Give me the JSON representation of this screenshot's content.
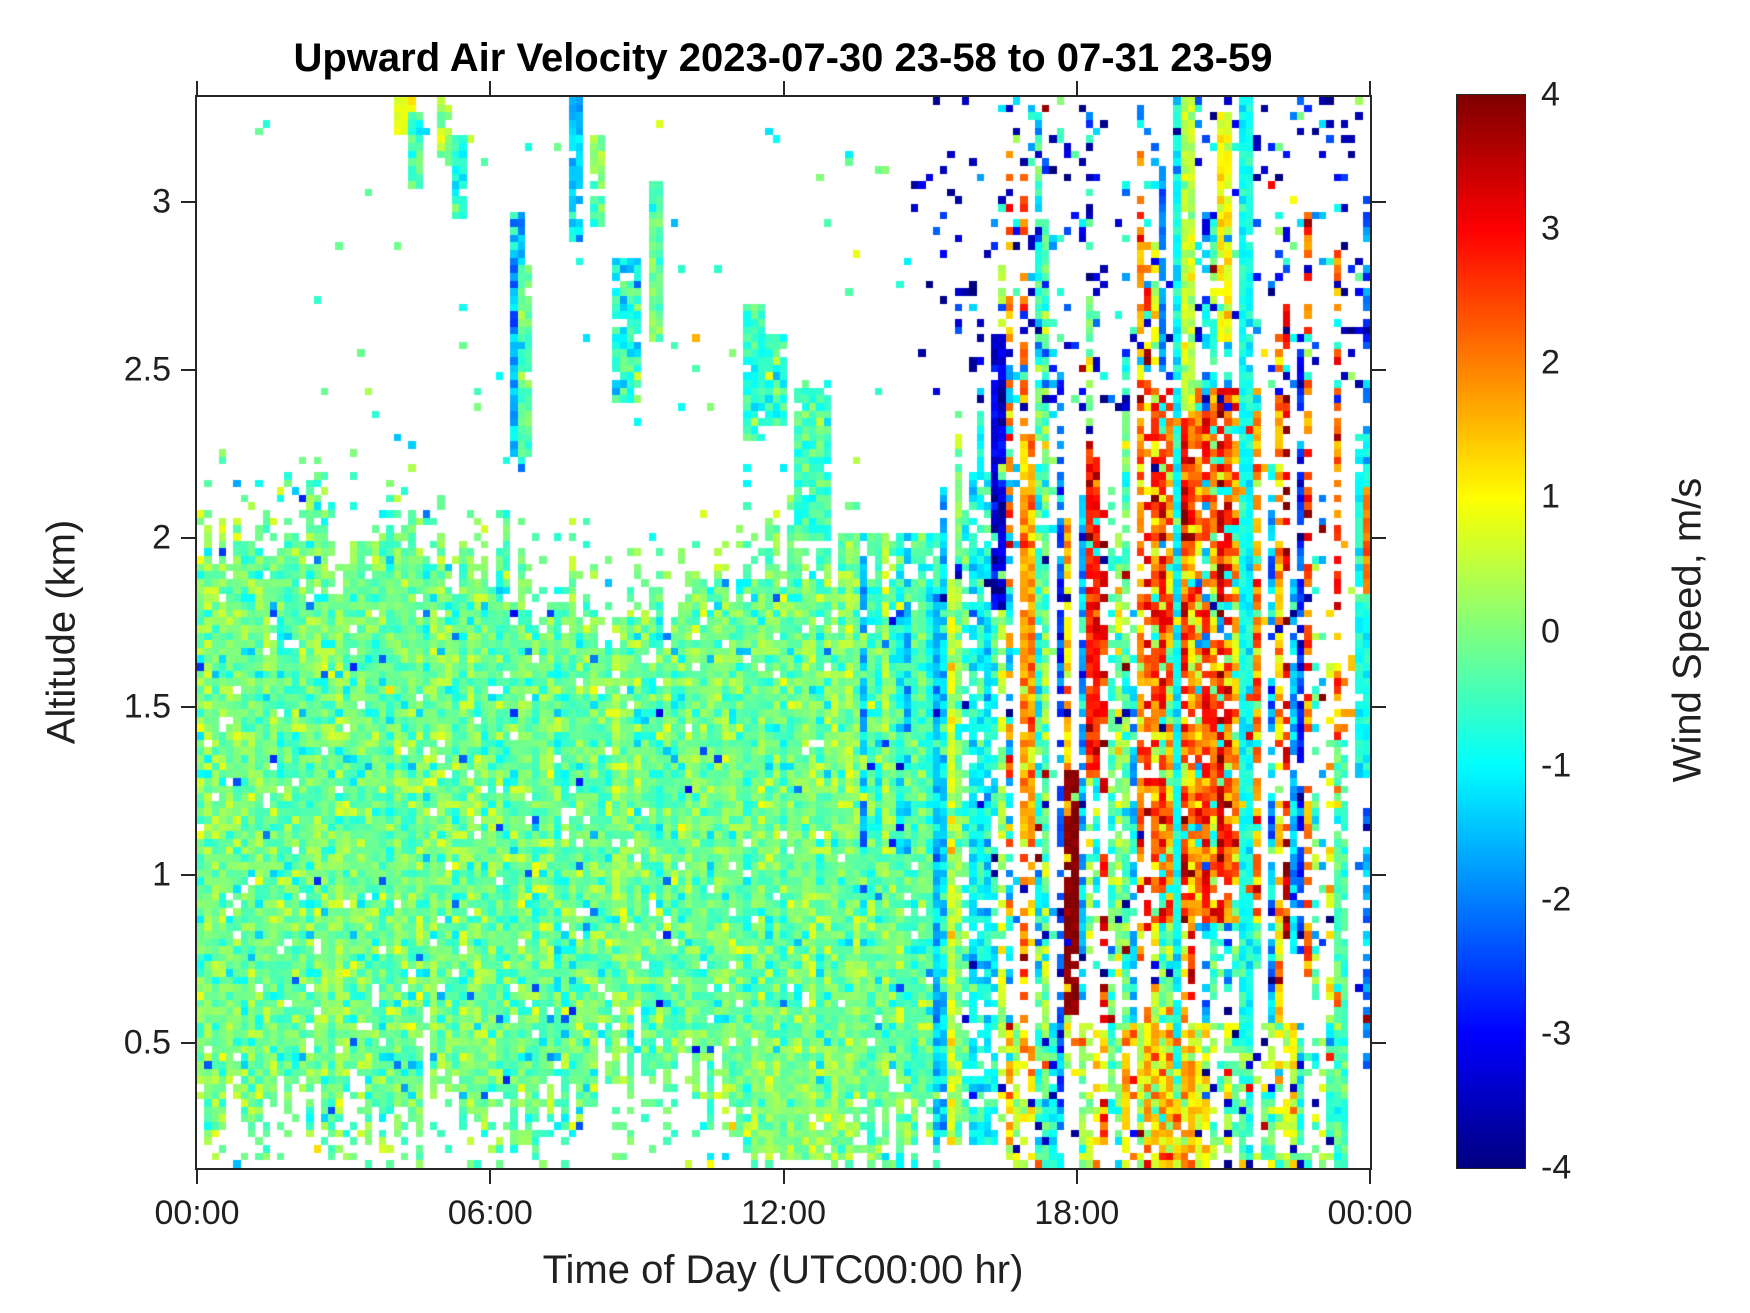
{
  "figure": {
    "background": "#ffffff",
    "text_color": "#202020",
    "frame_color": "#262626"
  },
  "chart_data": {
    "type": "heatmap",
    "title": "Upward Air Velocity 2023-07-30 23-58 to 07-31 23-59",
    "xlabel": "Time of Day (UTC00:00 hr)",
    "ylabel": "Altitude (km)",
    "x_unit": "hours_utc",
    "xlim": [
      0,
      24
    ],
    "ylim": [
      0.128,
      3.312
    ],
    "grid_lines": "off",
    "xticks": [
      {
        "value": 0,
        "label": "00:00"
      },
      {
        "value": 6,
        "label": "06:00"
      },
      {
        "value": 12,
        "label": "12:00"
      },
      {
        "value": 18,
        "label": "18:00"
      },
      {
        "value": 24,
        "label": "00:00"
      }
    ],
    "yticks": [
      {
        "value": 0.5,
        "label": "0.5"
      },
      {
        "value": 1,
        "label": "1"
      },
      {
        "value": 1.5,
        "label": "1.5"
      },
      {
        "value": 2,
        "label": "2"
      },
      {
        "value": 2.5,
        "label": "2.5"
      },
      {
        "value": 3,
        "label": "3"
      }
    ],
    "colorbar": {
      "label": "Wind Speed, m/s",
      "min": -4,
      "max": 4,
      "ticks": [
        4,
        3,
        2,
        1,
        0,
        -1,
        -2,
        -3,
        -4
      ],
      "colormap": "jet"
    },
    "grid": {
      "cols": 161,
      "rows": 140,
      "seed": 20230731
    },
    "field_model": {
      "regions": [
        {
          "name": "boundary-layer-core",
          "t": [
            0,
            15.4
          ],
          "top_profile": [
            [
              0,
              2.0
            ],
            [
              4,
              1.96
            ],
            [
              6,
              1.92
            ],
            [
              7,
              1.8
            ],
            [
              8.5,
              1.74
            ],
            [
              10,
              1.84
            ],
            [
              11,
              1.9
            ],
            [
              12,
              1.97
            ],
            [
              13,
              1.95
            ],
            [
              14,
              1.86
            ],
            [
              15.4,
              1.8
            ]
          ],
          "bottom_profile": [
            [
              0,
              0.3
            ],
            [
              3,
              0.34
            ],
            [
              6,
              0.3
            ],
            [
              8,
              0.4
            ],
            [
              10,
              0.44
            ],
            [
              11.3,
              0.28
            ],
            [
              13,
              0.2
            ],
            [
              14,
              0.32
            ],
            [
              15.4,
              0.38
            ]
          ],
          "top_jitter": 0.07,
          "bottom_jitter": 0.09,
          "halo_top": {
            "dist": 0.28,
            "density": 0.3
          },
          "halo_bottom": {
            "dist": 0.22,
            "density": 0.35
          },
          "density": 0.97,
          "mean": -0.18,
          "sd": 0.3,
          "col_jitter": 0.13,
          "outliers": [
            {
              "p": 0.05,
              "v": -1.1,
              "sd": 0.25
            },
            {
              "p": 0.1,
              "v": 0.5,
              "sd": 0.2
            },
            {
              "p": 0.012,
              "v": -2.3,
              "sd": 0.4
            }
          ]
        },
        {
          "name": "surface-sparse",
          "t": [
            0,
            15.4
          ],
          "alt": [
            0.128,
            0.26
          ],
          "density": 0.12,
          "mean": -0.35,
          "sd": 0.55,
          "outliers": [
            {
              "p": 0.1,
              "v": 0.6,
              "sd": 0.3
            }
          ]
        },
        {
          "name": "midday-low-extension",
          "t": [
            11.4,
            13.7
          ],
          "alt": [
            0.16,
            0.5
          ],
          "density": 0.75,
          "mean": 0.1,
          "sd": 0.3,
          "col_jitter": 0.1
        },
        {
          "name": "upper-left-sparse-dots",
          "t": [
            0.3,
            14.5
          ],
          "alt": [
            2.05,
            3.25
          ],
          "density": 0.012,
          "mean": -0.55,
          "sd": 0.5
        },
        {
          "name": "afternoon-cyan-mix",
          "t": [
            13.4,
            15.25
          ],
          "alt": [
            1.05,
            2.02
          ],
          "density": 0.8,
          "cell_sd": 0.35,
          "col_modes": [
            {
              "p": 0.5,
              "mean": -0.95,
              "sd": 0.4
            },
            {
              "p": 0.32,
              "mean": -0.25,
              "sd": 0.25
            },
            {
              "p": 0.18,
              "mean": 0.35,
              "sd": 0.25
            }
          ],
          "outliers": [
            {
              "p": 0.02,
              "v": -2.6,
              "sd": 0.4
            }
          ]
        },
        {
          "name": "late-afternoon-downdraft",
          "t": [
            15.2,
            16.55
          ],
          "alt": [
            0.2,
            2.1
          ],
          "top_profile": [
            [
              15.2,
              2.05
            ],
            [
              15.8,
              2.25
            ],
            [
              16.55,
              2.6
            ]
          ],
          "top_jitter": 0.15,
          "density": 0.78,
          "col_density": [
            0.5,
            1.0
          ],
          "cell_sd": 0.4,
          "col_modes": [
            {
              "p": 0.42,
              "mean": -1.15,
              "sd": 0.45
            },
            {
              "p": 0.2,
              "mean": -2.1,
              "sd": 0.5
            },
            {
              "p": 0.22,
              "mean": -0.25,
              "sd": 0.3
            },
            {
              "p": 0.16,
              "mean": 0.5,
              "sd": 0.3
            }
          ],
          "outliers": [
            {
              "p": 0.03,
              "v": -3.6,
              "sd": 0.3
            }
          ]
        },
        {
          "name": "evening-convective",
          "t": [
            16.55,
            24
          ],
          "col_top": [
            1.7,
            3.312
          ],
          "col_bottom": [
            0.13,
            0.85
          ],
          "density": 0.72,
          "col_density": [
            0.35,
            1.0
          ],
          "col_gap_p": 0.13,
          "col_gap_factor": 0.12,
          "cell_sd": 0.55,
          "col_modes": [
            {
              "p": 0.32,
              "mean": 1.9,
              "sd": 0.75
            },
            {
              "p": 0.3,
              "mean": -1.5,
              "sd": 0.7
            },
            {
              "p": 0.38,
              "mean": -0.15,
              "sd": 0.5
            }
          ],
          "outliers": [
            {
              "p": 0.03,
              "v": -3.7,
              "sd": 0.25
            },
            {
              "p": 0.012,
              "v": 3.8,
              "sd": 0.15
            }
          ]
        },
        {
          "name": "evening-updraft-core",
          "t": [
            19.55,
            21.75
          ],
          "alt": [
            0.85,
            2.45
          ],
          "density": 0.8,
          "mean": 2.35,
          "sd": 0.6,
          "col_jitter": 0.55,
          "clamp": [
            -1,
            4
          ],
          "outliers": [
            {
              "p": 0.05,
              "v": 0.6,
              "sd": 0.3
            },
            {
              "p": 0.04,
              "v": -1.2,
              "sd": 0.3
            }
          ]
        },
        {
          "name": "upper-right-navy-specks",
          "t": [
            14.7,
            24
          ],
          "alt": [
            2.38,
            3.312
          ],
          "density": 0.05,
          "mean": -3.55,
          "sd": 0.3
        },
        {
          "name": "upper-right-blue-specks",
          "t": [
            15.2,
            24
          ],
          "alt": [
            2.38,
            3.312
          ],
          "density": 0.04,
          "mean": -2.3,
          "sd": 0.5
        },
        {
          "name": "upper-right-cyan-specks",
          "t": [
            16.5,
            23.8
          ],
          "alt": [
            2.38,
            3.312
          ],
          "density": 0.05,
          "mean": -0.6,
          "sd": 0.5
        },
        {
          "name": "low-right-sparse",
          "t": [
            16.6,
            23.4
          ],
          "alt": [
            0.128,
            0.55
          ],
          "density": 0.22,
          "col_density": [
            0.1,
            1.0
          ],
          "cell_sd": 0.5,
          "col_modes": [
            {
              "p": 0.3,
              "mean": 1.2,
              "sd": 0.6
            },
            {
              "p": 0.4,
              "mean": -0.5,
              "sd": 0.5
            },
            {
              "p": 0.3,
              "mean": 0.2,
              "sd": 0.4
            }
          ],
          "outliers": [
            {
              "p": 0.06,
              "v": -3.6,
              "sd": 0.3
            },
            {
              "p": 0.03,
              "v": 3.0,
              "sd": 0.4
            }
          ]
        },
        {
          "name": "low-right-orange-plume",
          "t": [
            19.4,
            20.45
          ],
          "alt": [
            0.128,
            0.6
          ],
          "density": 0.55,
          "mean": 1.4,
          "sd": 0.8,
          "col_jitter": 0.3
        }
      ],
      "streaks": [
        {
          "t": [
            4.15,
            4.35
          ],
          "alt": [
            3.22,
            3.312
          ],
          "v": 0.9,
          "sd": 0.2
        },
        {
          "t": [
            4.4,
            4.55
          ],
          "alt": [
            3.05,
            3.25
          ],
          "v": -0.4,
          "sd": 0.3
        },
        {
          "t": [
            4.95,
            5.1
          ],
          "alt": [
            3.12,
            3.312
          ],
          "v": 0.2,
          "sd": 0.3
        },
        {
          "t": [
            5.3,
            5.45
          ],
          "alt": [
            2.95,
            3.18
          ],
          "v": -0.7,
          "sd": 0.3
        },
        {
          "t": [
            6.45,
            6.65
          ],
          "alt": [
            2.2,
            2.95
          ],
          "v": -1.7,
          "sd": 0.5
        },
        {
          "t": [
            6.65,
            6.8
          ],
          "alt": [
            2.25,
            2.8
          ],
          "v": -0.3,
          "sd": 0.3
        },
        {
          "t": [
            7.7,
            7.85
          ],
          "alt": [
            2.88,
            3.312
          ],
          "v": -1.3,
          "sd": 0.4
        },
        {
          "t": [
            8.15,
            8.3
          ],
          "alt": [
            2.93,
            3.2
          ],
          "v": 0.0,
          "sd": 0.3
        },
        {
          "t": [
            8.6,
            8.95
          ],
          "alt": [
            2.42,
            2.82
          ],
          "v": -0.7,
          "sd": 0.55
        },
        {
          "t": [
            9.3,
            9.45
          ],
          "alt": [
            2.6,
            3.05
          ],
          "v": -0.25,
          "sd": 0.3
        },
        {
          "t": [
            11.25,
            11.55
          ],
          "alt": [
            2.3,
            2.68
          ],
          "v": -0.6,
          "sd": 0.4
        },
        {
          "t": [
            11.7,
            11.95
          ],
          "alt": [
            2.35,
            2.6
          ],
          "v": -0.55,
          "sd": 0.4
        },
        {
          "t": [
            12.35,
            12.85
          ],
          "alt": [
            2.0,
            2.45
          ],
          "v": -0.45,
          "sd": 0.3
        },
        {
          "t": [
            16.35,
            16.5
          ],
          "alt": [
            1.8,
            2.6
          ],
          "v": -3.3,
          "sd": 0.4
        },
        {
          "t": [
            16.85,
            17.05
          ],
          "alt": [
            1.1,
            2.3
          ],
          "v": 1.8,
          "sd": 0.5
        },
        {
          "t": [
            17.8,
            17.95
          ],
          "alt": [
            0.6,
            1.3
          ],
          "v": 3.9,
          "sd": 0.1
        },
        {
          "t": [
            18.25,
            18.4
          ],
          "alt": [
            1.3,
            2.3
          ],
          "v": 2.8,
          "sd": 0.4
        },
        {
          "t": [
            20.0,
            20.12
          ],
          "alt": [
            0.35,
            3.312
          ],
          "v": -1.0,
          "sd": 0.25
        },
        {
          "t": [
            21.4,
            21.52
          ],
          "alt": [
            0.5,
            3.312
          ],
          "v": -0.9,
          "sd": 0.25
        },
        {
          "t": [
            20.2,
            20.32
          ],
          "alt": [
            2.4,
            3.312
          ],
          "v": 0.5,
          "sd": 0.3
        },
        {
          "t": [
            21.0,
            21.12
          ],
          "alt": [
            2.6,
            3.25
          ],
          "v": 0.9,
          "sd": 0.3
        },
        {
          "t": [
            19.7,
            19.82
          ],
          "alt": [
            2.5,
            3.1
          ],
          "v": -2.0,
          "sd": 0.3
        },
        {
          "t": [
            23.35,
            23.55
          ],
          "alt": [
            0.15,
            1.4
          ],
          "v": -0.4,
          "sd": 0.3
        },
        {
          "t": [
            23.85,
            24
          ],
          "alt": [
            1.3,
            2.3
          ],
          "v": -0.8,
          "sd": 0.3
        },
        {
          "t": [
            23.9,
            24
          ],
          "alt": [
            1.85,
            2.15
          ],
          "v": 2.0,
          "sd": 0.3
        },
        {
          "t": [
            19.5,
            20.4
          ],
          "alt": [
            0.128,
            0.55
          ],
          "v": 1.5,
          "sd": 0.7,
          "density": 0.6
        }
      ],
      "dots": [
        {
          "t": 19.35,
          "alt": 2.9,
          "v": 3.2
        },
        {
          "t": 17.32,
          "alt": 3.28,
          "v": 3.8
        },
        {
          "t": 21.97,
          "alt": 3.06,
          "v": 3.0
        },
        {
          "t": 18.1,
          "alt": 2.5,
          "v": 3.6
        },
        {
          "t": 10.2,
          "alt": 2.6,
          "v": 1.6
        }
      ]
    }
  }
}
